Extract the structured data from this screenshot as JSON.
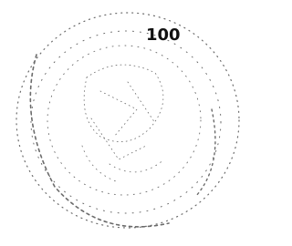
{
  "label": "100"
}
